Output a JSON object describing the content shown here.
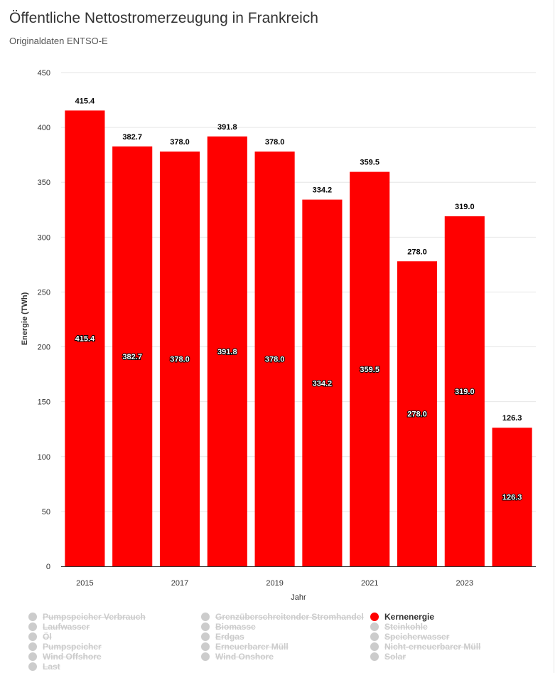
{
  "title": "Öffentliche Nettostromerzeugung in Frankreich",
  "subtitle": "Originaldaten ENTSO-E",
  "colors": {
    "bar": "#ff0000",
    "grid": "#e6e6e6",
    "axis": "#333333",
    "legend_inactive": "#cccccc"
  },
  "chart_data": {
    "type": "bar",
    "title": "Öffentliche Nettostromerzeugung in Frankreich",
    "subtitle": "Originaldaten ENTSO-E",
    "xlabel": "Jahr",
    "ylabel": "Energie (TWh)",
    "ylim": [
      0,
      450
    ],
    "yticks": [
      0,
      50,
      100,
      150,
      200,
      250,
      300,
      350,
      400,
      450
    ],
    "categories": [
      "2015",
      "2016",
      "2017",
      "2018",
      "2019",
      "2020",
      "2021",
      "2022",
      "2023",
      "2024"
    ],
    "xtick_labels": [
      "2015",
      "",
      "2017",
      "",
      "2019",
      "",
      "2021",
      "",
      "2023",
      ""
    ],
    "grid": true,
    "legend_position": "bottom",
    "series": [
      {
        "name": "Kernenergie",
        "color": "#ff0000",
        "values": [
          415.4,
          382.7,
          378.0,
          391.8,
          378.0,
          334.2,
          359.5,
          278.0,
          319.0,
          126.3
        ],
        "value_labels": [
          "415.4",
          "382.7",
          "378.0",
          "391.8",
          "378.0",
          "334.2",
          "359.5",
          "278.0",
          "319.0",
          "126.3"
        ]
      }
    ]
  },
  "legend": {
    "items": [
      {
        "label": "Pumpspeicher Verbrauch",
        "active": false
      },
      {
        "label": "Grenzüberschreitender Stromhandel",
        "active": false
      },
      {
        "label": "Kernenergie",
        "active": true,
        "color": "#ff0000"
      },
      {
        "label": "Laufwasser",
        "active": false
      },
      {
        "label": "Biomasse",
        "active": false
      },
      {
        "label": "Steinkohle",
        "active": false
      },
      {
        "label": "Öl",
        "active": false
      },
      {
        "label": "Erdgas",
        "active": false
      },
      {
        "label": "Speicherwasser",
        "active": false
      },
      {
        "label": "Pumpspeicher",
        "active": false
      },
      {
        "label": "Erneuerbarer Müll",
        "active": false
      },
      {
        "label": "Nicht-erneuerbarer Müll",
        "active": false
      },
      {
        "label": "Wind Offshore",
        "active": false
      },
      {
        "label": "Wind Onshore",
        "active": false
      },
      {
        "label": "Solar",
        "active": false
      },
      {
        "label": "Last",
        "active": false
      }
    ]
  }
}
